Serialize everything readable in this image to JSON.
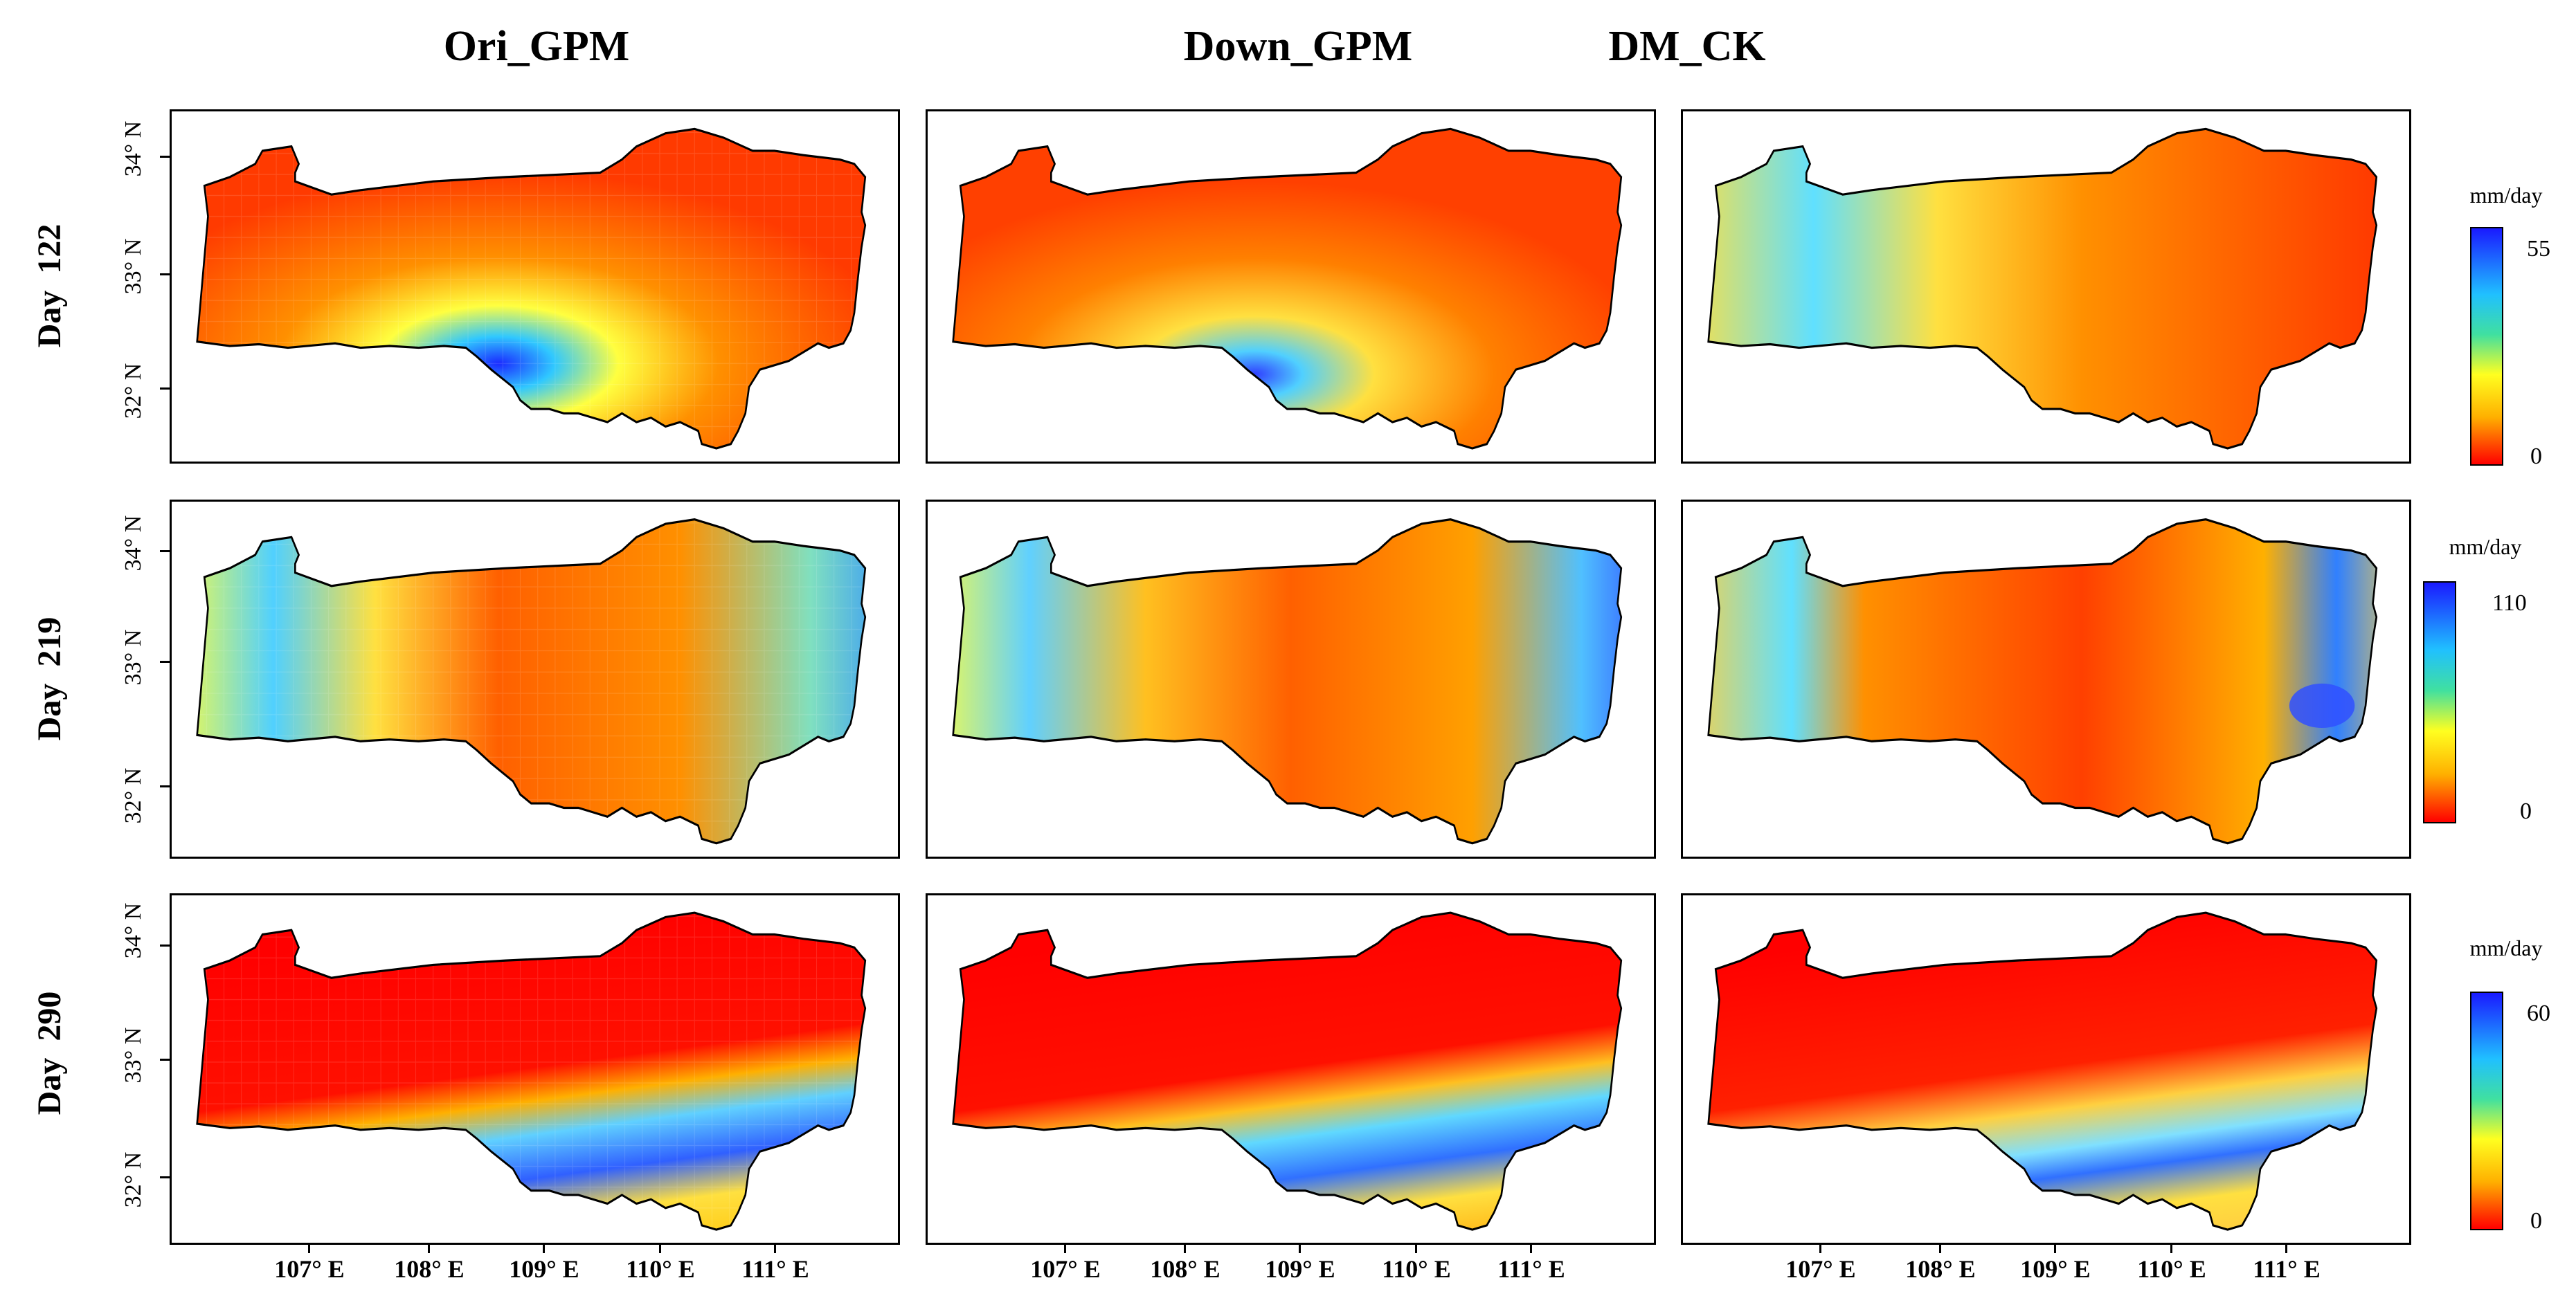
{
  "columns": [
    {
      "title": "Ori_GPM"
    },
    {
      "title": "Down_GPM"
    },
    {
      "title": "DM_CK"
    }
  ],
  "rows": [
    {
      "label": "Day  122",
      "legend": {
        "unit": "mm/day",
        "max": "55",
        "min": "0"
      }
    },
    {
      "label": "Day  219",
      "legend": {
        "unit": "mm/day",
        "max": "110",
        "min": "0"
      }
    },
    {
      "label": "Day  290",
      "legend": {
        "unit": "mm/day",
        "max": "60",
        "min": "0"
      }
    }
  ],
  "latitude_labels": [
    "34° N",
    "33° N",
    "32° N"
  ],
  "longitude_labels": [
    "107° E",
    "108° E",
    "109° E",
    "110° E",
    "111° E"
  ],
  "colors": {
    "low": "#ff0000",
    "mid": "#ffff20",
    "high": "#1a1aff",
    "outline": "#000000"
  }
}
